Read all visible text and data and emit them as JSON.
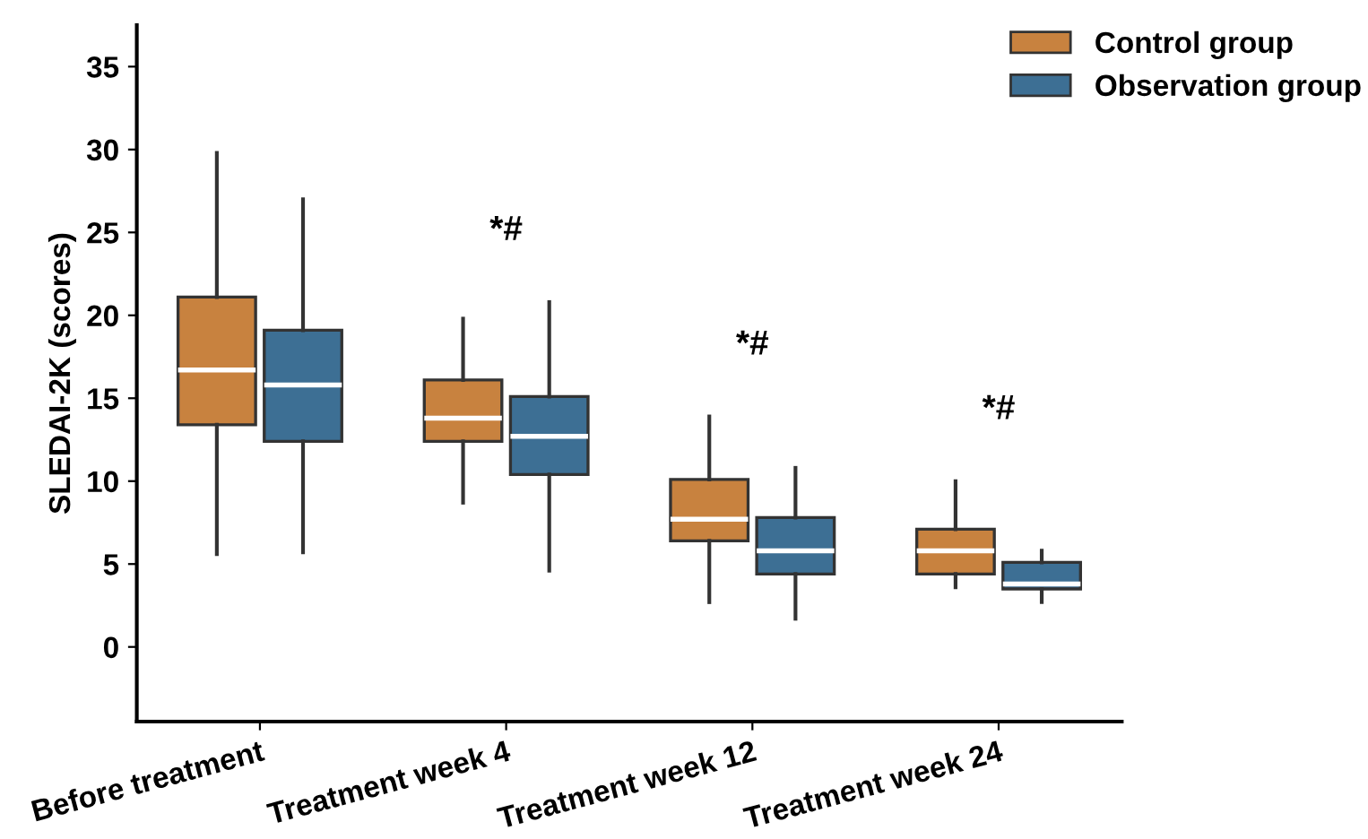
{
  "chart_data": {
    "type": "box",
    "ylabel": "SLEDAI-2K (scores)",
    "categories": [
      "Before treatment",
      "Treatment week 4",
      "Treatment week 12",
      "Treatment week 24"
    ],
    "ylim": [
      -4.5,
      37.5
    ],
    "yticks": [
      0,
      5,
      10,
      15,
      20,
      25,
      30,
      35
    ],
    "grid": false,
    "legend": "top right",
    "series": [
      {
        "name": "Control group",
        "color": "#c8823f",
        "boxes": [
          {
            "low": 5.6,
            "q1": 13.4,
            "median": 16.7,
            "q3": 21.1,
            "high": 29.8
          },
          {
            "low": 8.7,
            "q1": 12.4,
            "median": 13.8,
            "q3": 16.1,
            "high": 19.8
          },
          {
            "low": 2.7,
            "q1": 6.4,
            "median": 7.7,
            "q3": 10.1,
            "high": 13.9
          },
          {
            "low": 3.6,
            "q1": 4.4,
            "median": 5.8,
            "q3": 7.1,
            "high": 10
          }
        ]
      },
      {
        "name": "Observation group",
        "color": "#3d6f94",
        "boxes": [
          {
            "low": 5.7,
            "q1": 12.4,
            "median": 15.8,
            "q3": 19.1,
            "high": 27
          },
          {
            "low": 4.6,
            "q1": 10.4,
            "median": 12.7,
            "q3": 15.1,
            "high": 20.8
          },
          {
            "low": 1.7,
            "q1": 4.4,
            "median": 5.8,
            "q3": 7.8,
            "high": 10.8
          },
          {
            "low": 2.7,
            "q1": 3.5,
            "median": 3.8,
            "q3": 5.1,
            "high": 5.8
          }
        ]
      }
    ],
    "annotations": [
      "*#",
      "*#",
      "*#"
    ]
  }
}
